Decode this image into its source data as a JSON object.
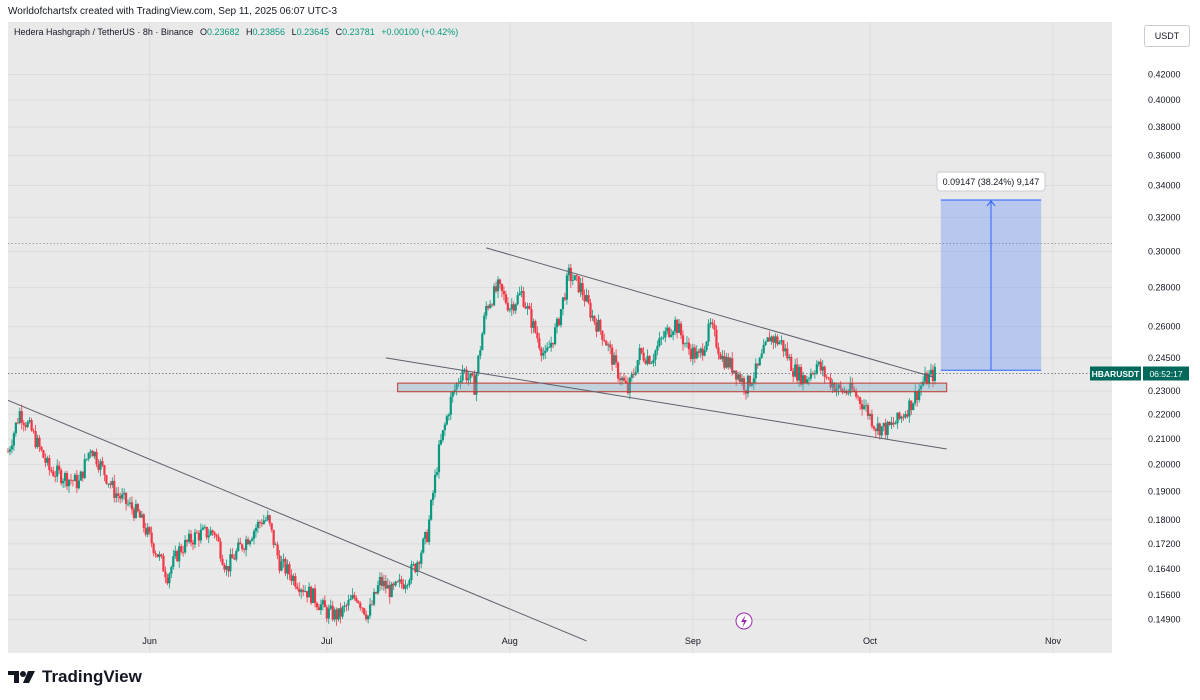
{
  "header": {
    "created_text": "Worldofchartsfx created with TradingView.com, Sep 11, 2025 06:07 UTC-3"
  },
  "legend": {
    "symbol": "Hedera Hashgraph / TetherUS · 8h · Binance",
    "o_label": "O",
    "o_value": "0.23682",
    "h_label": "H",
    "h_value": "0.23856",
    "l_label": "L",
    "l_value": "0.23645",
    "c_label": "C",
    "c_value": "0.23781",
    "change": "+0.00100 (+0.42%)"
  },
  "unit_button": "USDT",
  "price_label": {
    "ticker": "HBARUSDT",
    "countdown": "06:52:17"
  },
  "measure_label": "0.09147 (38.24%) 9,147",
  "brand": {
    "name": "TradingView",
    "icon": "tradingview-logo-icon",
    "watermark_icon": "lightning-icon"
  },
  "colors": {
    "up": "#089981",
    "down": "#f23645",
    "measure": "#2962ff",
    "background": "#e9e9e9",
    "ticker_bg": "#00695c"
  },
  "chart_data": {
    "type": "candlestick",
    "y_axis": {
      "scale": "log",
      "ylim": [
        0.146,
        0.44
      ],
      "ticks": [
        "0.42000",
        "0.40000",
        "0.38000",
        "0.36000",
        "0.34000",
        "0.32000",
        "0.30000",
        "0.28000",
        "0.26000",
        "0.24500",
        "0.23000",
        "0.22000",
        "0.21000",
        "0.20000",
        "0.19000",
        "0.18000",
        "0.17200",
        "0.16400",
        "0.15600",
        "0.14900"
      ]
    },
    "x_axis": {
      "xlim": [
        "2025-05-08",
        "2025-11-11"
      ],
      "ticks": [
        {
          "label": "Jun",
          "date": "2025-06-01"
        },
        {
          "label": "Jul",
          "date": "2025-07-01"
        },
        {
          "label": "Aug",
          "date": "2025-08-01"
        },
        {
          "label": "Sep",
          "date": "2025-09-01"
        },
        {
          "label": "Oct",
          "date": "2025-10-01"
        },
        {
          "label": "Nov",
          "date": "2025-11-01"
        }
      ]
    },
    "close_path": [
      [
        "2025-05-08",
        0.205
      ],
      [
        "2025-05-10",
        0.221
      ],
      [
        "2025-05-12",
        0.213
      ],
      [
        "2025-05-15",
        0.198
      ],
      [
        "2025-05-20",
        0.193
      ],
      [
        "2025-05-22",
        0.207
      ],
      [
        "2025-05-26",
        0.19
      ],
      [
        "2025-05-30",
        0.182
      ],
      [
        "2025-06-02",
        0.17
      ],
      [
        "2025-06-04",
        0.162
      ],
      [
        "2025-06-06",
        0.17
      ],
      [
        "2025-06-09",
        0.175
      ],
      [
        "2025-06-12",
        0.176
      ],
      [
        "2025-06-14",
        0.164
      ],
      [
        "2025-06-16",
        0.17
      ],
      [
        "2025-06-18",
        0.175
      ],
      [
        "2025-06-20",
        0.18
      ],
      [
        "2025-06-21",
        0.18
      ],
      [
        "2025-06-23",
        0.166
      ],
      [
        "2025-06-26",
        0.16
      ],
      [
        "2025-06-29",
        0.155
      ],
      [
        "2025-07-01",
        0.151
      ],
      [
        "2025-07-03",
        0.15
      ],
      [
        "2025-07-06",
        0.156
      ],
      [
        "2025-07-08",
        0.15
      ],
      [
        "2025-07-10",
        0.16
      ],
      [
        "2025-07-12",
        0.157
      ],
      [
        "2025-07-14",
        0.16
      ],
      [
        "2025-07-16",
        0.165
      ],
      [
        "2025-07-18",
        0.175
      ],
      [
        "2025-07-20",
        0.205
      ],
      [
        "2025-07-22",
        0.226
      ],
      [
        "2025-07-24",
        0.24
      ],
      [
        "2025-07-26",
        0.232
      ],
      [
        "2025-07-28",
        0.27
      ],
      [
        "2025-07-30",
        0.28
      ],
      [
        "2025-08-01",
        0.27
      ],
      [
        "2025-08-03",
        0.277
      ],
      [
        "2025-08-05",
        0.26
      ],
      [
        "2025-08-07",
        0.245
      ],
      [
        "2025-08-09",
        0.26
      ],
      [
        "2025-08-11",
        0.287
      ],
      [
        "2025-08-13",
        0.28
      ],
      [
        "2025-08-15",
        0.265
      ],
      [
        "2025-08-17",
        0.255
      ],
      [
        "2025-08-19",
        0.24
      ],
      [
        "2025-08-21",
        0.23
      ],
      [
        "2025-08-23",
        0.247
      ],
      [
        "2025-08-25",
        0.245
      ],
      [
        "2025-08-27",
        0.255
      ],
      [
        "2025-08-29",
        0.262
      ],
      [
        "2025-08-31",
        0.25
      ],
      [
        "2025-09-02",
        0.245
      ],
      [
        "2025-09-04",
        0.26
      ],
      [
        "2025-09-06",
        0.245
      ],
      [
        "2025-09-08",
        0.24
      ],
      [
        "2025-09-10",
        0.232
      ],
      [
        "2025-09-12",
        0.24
      ],
      [
        "2025-09-14",
        0.255
      ],
      [
        "2025-09-16",
        0.252
      ],
      [
        "2025-09-18",
        0.24
      ],
      [
        "2025-09-20",
        0.235
      ],
      [
        "2025-09-22",
        0.242
      ],
      [
        "2025-09-24",
        0.235
      ],
      [
        "2025-09-26",
        0.23
      ],
      [
        "2025-09-28",
        0.23
      ],
      [
        "2025-09-30",
        0.224
      ],
      [
        "2025-10-02",
        0.215
      ],
      [
        "2025-10-04",
        0.214
      ],
      [
        "2025-10-06",
        0.218
      ],
      [
        "2025-10-08",
        0.225
      ],
      [
        "2025-10-10",
        0.234
      ],
      [
        "2025-10-12",
        0.238
      ]
    ],
    "drawings": {
      "trendlines": [
        {
          "from": [
            "2025-05-08",
            0.226
          ],
          "to": [
            "2025-08-14",
            0.143
          ]
        },
        {
          "from": [
            "2025-07-28",
            0.302
          ],
          "to": [
            "2025-10-12",
            0.236
          ]
        },
        {
          "from": [
            "2025-07-11",
            0.245
          ],
          "to": [
            "2025-10-14",
            0.206
          ]
        }
      ],
      "support_zone": {
        "x": [
          "2025-07-13",
          "2025-10-14"
        ],
        "y": [
          0.2297,
          0.2335
        ]
      },
      "dotted_levels": [
        0.3045
      ],
      "measure": {
        "x": [
          "2025-10-13",
          "2025-10-30"
        ],
        "y": [
          0.2393,
          0.3308
        ]
      }
    },
    "last_price": 0.23781
  }
}
